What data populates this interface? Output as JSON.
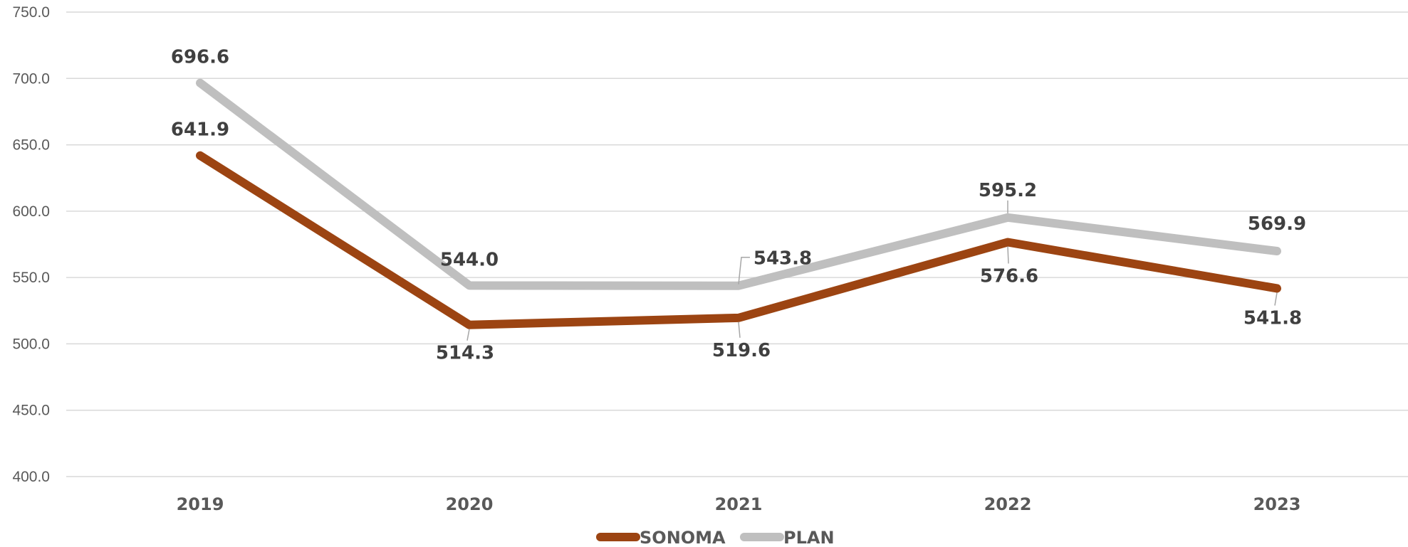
{
  "chart_data": {
    "type": "line",
    "categories": [
      "2019",
      "2020",
      "2021",
      "2022",
      "2023"
    ],
    "ylim": [
      400,
      750
    ],
    "yticks": [
      "400.0",
      "450.0",
      "500.0",
      "550.0",
      "600.0",
      "650.0",
      "700.0",
      "750.0"
    ],
    "grid": true,
    "legend_position": "bottom",
    "series": [
      {
        "name": "SONOMA",
        "color": "#9C4412",
        "values": [
          641.9,
          514.3,
          519.6,
          576.6,
          541.8
        ],
        "labels": [
          "641.9",
          "514.3",
          "519.6",
          "576.6",
          "541.8"
        ]
      },
      {
        "name": "PLAN",
        "color": "#BFBFBF",
        "values": [
          696.6,
          544.0,
          543.8,
          595.2,
          569.9
        ],
        "labels": [
          "696.6",
          "544.0",
          "543.8",
          "595.2",
          "569.9"
        ]
      }
    ]
  }
}
